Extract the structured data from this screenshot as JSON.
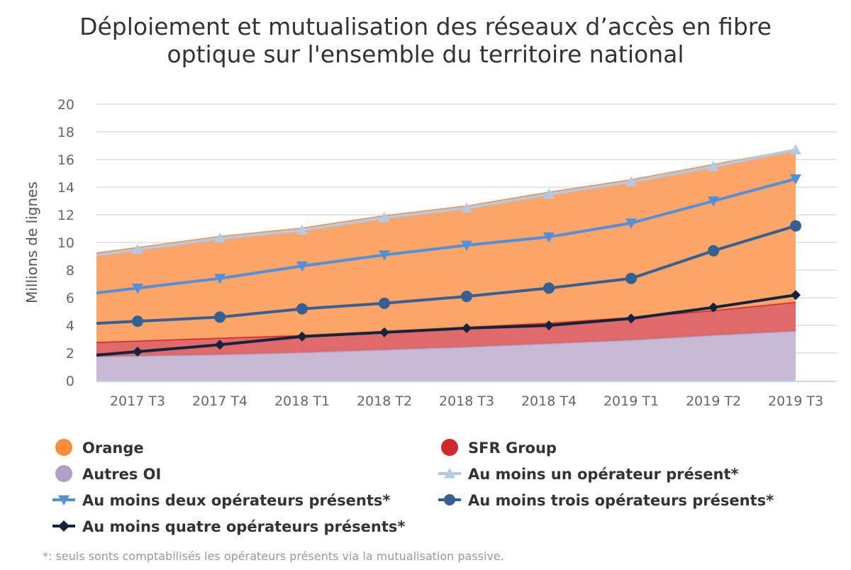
{
  "chart_data": {
    "type": "area",
    "title_lines": [
      "Déploiement et mutualisation des réseaux d’accès en fibre",
      "optique sur l'ensemble du territoire national"
    ],
    "xlabel": "",
    "ylabel": "Millions de lignes",
    "ylim": [
      0,
      20
    ],
    "yticks": [
      0,
      2,
      4,
      6,
      8,
      10,
      12,
      14,
      16,
      18,
      20
    ],
    "grid": true,
    "legend_position": "bottom",
    "categories": [
      "2017 T3",
      "2017 T4",
      "2018 T1",
      "2018 T2",
      "2018 T3",
      "2018 T4",
      "2019 T1",
      "2019 T2",
      "2019 T3"
    ],
    "stacked_areas": [
      {
        "name": "Autres OI",
        "color": "#b39fc8",
        "fill": "#c5b6d4",
        "values": [
          1.8,
          1.9,
          2.05,
          2.25,
          2.45,
          2.7,
          2.95,
          3.3,
          3.6
        ]
      },
      {
        "name": "SFR Group",
        "color": "#d0282f",
        "fill": "#dc6262",
        "values": [
          1.1,
          1.2,
          1.25,
          1.35,
          1.45,
          1.5,
          1.65,
          1.8,
          2.1
        ]
      },
      {
        "name": "Orange",
        "color": "#ff8c3a",
        "fill": "#fca060",
        "values": [
          6.7,
          7.3,
          7.7,
          8.3,
          8.7,
          9.4,
          9.9,
          10.5,
          11.0
        ]
      }
    ],
    "lines": [
      {
        "name": "Au moins un opérateur présent*",
        "color": "#b5c9e3",
        "marker": "triangle-up",
        "values": [
          9.5,
          10.3,
          10.9,
          11.8,
          12.5,
          13.5,
          14.4,
          15.5,
          16.7
        ]
      },
      {
        "name": "Au moins deux opérateurs présents*",
        "color": "#5590d6",
        "marker": "triangle-down",
        "values": [
          6.7,
          7.4,
          8.3,
          9.1,
          9.8,
          10.4,
          11.4,
          13.0,
          14.6
        ]
      },
      {
        "name": "Au moins trois opérateurs présents*",
        "color": "#375f91",
        "marker": "circle",
        "values": [
          4.3,
          4.6,
          5.2,
          5.6,
          6.1,
          6.7,
          7.4,
          9.4,
          11.2
        ]
      },
      {
        "name": "Au moins quatre opérateurs présents*",
        "color": "#14243f",
        "marker": "diamond",
        "values": [
          2.1,
          2.6,
          3.2,
          3.5,
          3.8,
          4.0,
          4.5,
          5.3,
          6.2
        ]
      }
    ],
    "legend": [
      {
        "name": "Orange",
        "color": "#ff8c3a",
        "symbol": "circle"
      },
      {
        "name": "SFR Group",
        "color": "#d0282f",
        "symbol": "circle"
      },
      {
        "name": "Autres OI",
        "color": "#b39fc8",
        "symbol": "circle"
      },
      {
        "name": "Au moins un opérateur présent*",
        "color": "#b5c9e3",
        "symbol": "triangle-up"
      },
      {
        "name": "Au moins deux opérateurs présents*",
        "color": "#5590d6",
        "symbol": "triangle-down"
      },
      {
        "name": "Au moins trois opérateurs présents*",
        "color": "#375f91",
        "symbol": "circle-line"
      },
      {
        "name": "Au moins quatre opérateurs présents*",
        "color": "#14243f",
        "symbol": "diamond"
      }
    ],
    "footnote": "*: seuls sonts comptabilisés les opérateurs présents via la mutualisation passive."
  }
}
